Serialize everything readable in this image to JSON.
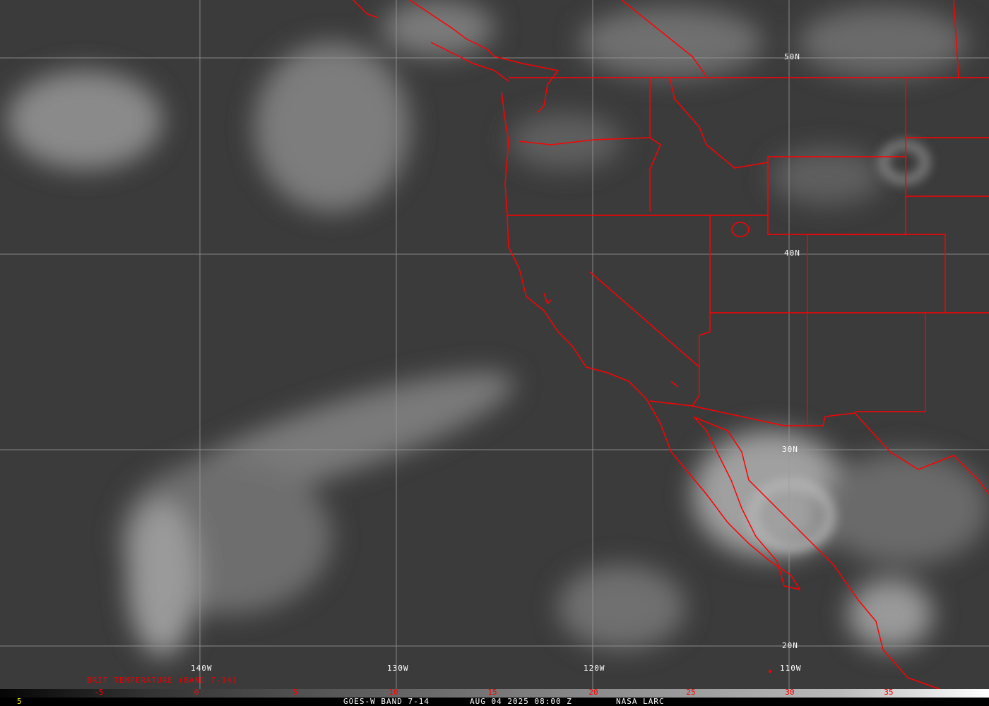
{
  "map": {
    "border_color": "#ff0000",
    "grid_color": "#aaaaaa",
    "longitude_labels": [
      "140W",
      "130W",
      "120W",
      "110W"
    ],
    "latitude_labels": [
      "50N",
      "40N",
      "30N",
      "20N"
    ]
  },
  "colorbar": {
    "title": "BRIT TEMPERATURE (BAND 7-14)",
    "ticks": [
      "-5",
      "0",
      "5",
      "10",
      "15",
      "20",
      "25",
      "30",
      "35"
    ],
    "tick_color": "#ff0000",
    "gradient": [
      "#000000",
      "#ffffff"
    ]
  },
  "footer": {
    "left_value": "5",
    "product": "GOES-W BAND 7-14",
    "datetime": "AUG 04 2025 08:00 Z",
    "source": "NASA LARC"
  }
}
